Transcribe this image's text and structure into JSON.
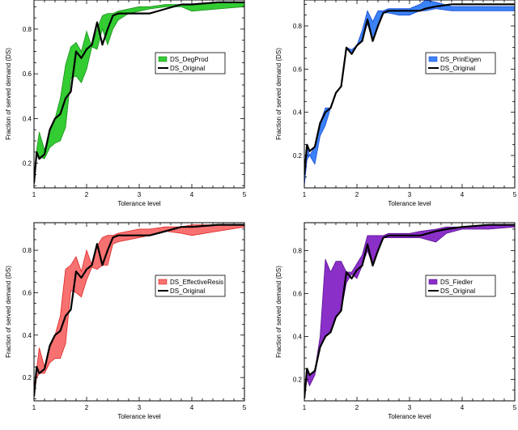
{
  "chart_data": [
    {
      "type": "area",
      "xlabel": "Tolerance level",
      "ylabel": "Fraction of served demand (DS)",
      "xlim": [
        1,
        5
      ],
      "ylim": [
        0.09,
        0.93
      ],
      "xticks": [
        "1",
        "2",
        "3",
        "4",
        "5"
      ],
      "yticks": [
        "0.2",
        "0.4",
        "0.6",
        "0.8"
      ],
      "legend": {
        "placement": "center-right",
        "entries": [
          "DS_DegProd",
          "DS_Original"
        ]
      },
      "band_color": "#33cc33",
      "band_stroke": "#1f8f1f",
      "series": [
        {
          "name": "DS_DegProd",
          "x": [
            1.0,
            1.05,
            1.1,
            1.2,
            1.3,
            1.4,
            1.5,
            1.6,
            1.7,
            1.8,
            1.9,
            2.0,
            2.1,
            2.2,
            2.3,
            2.4,
            2.5,
            2.6,
            2.8,
            3.0,
            3.2,
            3.5,
            3.8,
            4.0,
            4.5,
            5.0
          ],
          "upper": [
            0.11,
            0.26,
            0.34,
            0.26,
            0.34,
            0.4,
            0.49,
            0.64,
            0.72,
            0.74,
            0.7,
            0.79,
            0.72,
            0.8,
            0.86,
            0.87,
            0.87,
            0.88,
            0.89,
            0.9,
            0.9,
            0.91,
            0.91,
            0.91,
            0.92,
            0.92
          ],
          "lower": [
            0.1,
            0.23,
            0.23,
            0.22,
            0.27,
            0.29,
            0.3,
            0.36,
            0.58,
            0.59,
            0.56,
            0.62,
            0.72,
            0.71,
            0.8,
            0.73,
            0.8,
            0.84,
            0.87,
            0.88,
            0.89,
            0.9,
            0.9,
            0.88,
            0.89,
            0.9
          ]
        },
        {
          "name": "DS_Original",
          "x": [
            1.0,
            1.05,
            1.1,
            1.2,
            1.3,
            1.4,
            1.5,
            1.6,
            1.7,
            1.8,
            1.9,
            2.0,
            2.1,
            2.2,
            2.3,
            2.4,
            2.5,
            2.6,
            2.8,
            3.0,
            3.2,
            3.5,
            3.8,
            4.0,
            4.5,
            5.0
          ],
          "values": [
            0.11,
            0.25,
            0.22,
            0.24,
            0.35,
            0.4,
            0.42,
            0.49,
            0.52,
            0.7,
            0.67,
            0.71,
            0.73,
            0.83,
            0.73,
            0.8,
            0.86,
            0.87,
            0.87,
            0.87,
            0.87,
            0.89,
            0.91,
            0.91,
            0.92,
            0.92
          ]
        }
      ]
    },
    {
      "type": "area",
      "xlabel": "Tolerance level",
      "ylabel": "Fraction of served demand (DS)",
      "xlim": [
        1,
        5
      ],
      "ylim": [
        0.05,
        0.92
      ],
      "xticks": [
        "1",
        "2",
        "3",
        "4",
        "5"
      ],
      "yticks": [
        "0.2",
        "0.4",
        "0.6",
        "0.8"
      ],
      "legend": {
        "placement": "center-right",
        "entries": [
          "DS_PrinEigen",
          "DS_Original"
        ]
      },
      "band_color": "#3b82f6",
      "band_stroke": "#1d4ed8",
      "series": [
        {
          "name": "DS_PrinEigen",
          "x": [
            1.0,
            1.05,
            1.1,
            1.2,
            1.3,
            1.4,
            1.5,
            1.6,
            1.7,
            1.8,
            1.9,
            2.0,
            2.1,
            2.2,
            2.3,
            2.4,
            2.5,
            2.6,
            2.8,
            3.0,
            3.2,
            3.3,
            3.5,
            3.8,
            4.0,
            4.5,
            5.0
          ],
          "upper": [
            0.11,
            0.24,
            0.2,
            0.24,
            0.35,
            0.42,
            0.42,
            0.49,
            0.52,
            0.7,
            0.69,
            0.71,
            0.78,
            0.87,
            0.82,
            0.87,
            0.87,
            0.88,
            0.88,
            0.88,
            0.9,
            0.92,
            0.91,
            0.89,
            0.89,
            0.89,
            0.89
          ],
          "lower": [
            0.06,
            0.18,
            0.2,
            0.16,
            0.29,
            0.34,
            0.42,
            0.49,
            0.52,
            0.7,
            0.67,
            0.71,
            0.73,
            0.81,
            0.73,
            0.8,
            0.86,
            0.86,
            0.85,
            0.85,
            0.87,
            0.87,
            0.88,
            0.87,
            0.87,
            0.87,
            0.87
          ]
        },
        {
          "name": "DS_Original",
          "x": [
            1.0,
            1.05,
            1.1,
            1.2,
            1.3,
            1.4,
            1.5,
            1.6,
            1.7,
            1.8,
            1.9,
            2.0,
            2.1,
            2.2,
            2.3,
            2.4,
            2.5,
            2.6,
            2.8,
            3.0,
            3.2,
            3.3,
            3.5,
            3.8,
            4.0,
            4.5,
            5.0
          ],
          "values": [
            0.11,
            0.25,
            0.22,
            0.24,
            0.35,
            0.4,
            0.42,
            0.49,
            0.52,
            0.7,
            0.67,
            0.71,
            0.73,
            0.83,
            0.73,
            0.8,
            0.86,
            0.87,
            0.87,
            0.87,
            0.87,
            0.88,
            0.89,
            0.9,
            0.9,
            0.9,
            0.9
          ]
        }
      ]
    },
    {
      "type": "area",
      "xlabel": "Tolerance level",
      "ylabel": "Fraction of served demand (DS)",
      "xlim": [
        1,
        5
      ],
      "ylim": [
        0.09,
        0.93
      ],
      "xticks": [
        "1",
        "2",
        "3",
        "4",
        "5"
      ],
      "yticks": [
        "0.2",
        "0.4",
        "0.6",
        "0.8"
      ],
      "legend": {
        "placement": "center-right",
        "entries": [
          "DS_EffectiveResis",
          "DS_Original"
        ]
      },
      "band_color": "#f87171",
      "band_stroke": "#dc2626",
      "series": [
        {
          "name": "DS_EffectiveResis",
          "x": [
            1.0,
            1.05,
            1.1,
            1.2,
            1.3,
            1.4,
            1.5,
            1.6,
            1.7,
            1.8,
            1.9,
            2.0,
            2.1,
            2.2,
            2.3,
            2.4,
            2.5,
            2.6,
            2.8,
            3.0,
            3.2,
            3.5,
            3.8,
            4.0,
            4.5,
            5.0
          ],
          "upper": [
            0.14,
            0.24,
            0.34,
            0.25,
            0.34,
            0.4,
            0.49,
            0.71,
            0.73,
            0.77,
            0.7,
            0.8,
            0.73,
            0.82,
            0.86,
            0.87,
            0.87,
            0.88,
            0.89,
            0.9,
            0.9,
            0.91,
            0.91,
            0.92,
            0.92,
            0.92
          ],
          "lower": [
            0.11,
            0.2,
            0.22,
            0.22,
            0.27,
            0.29,
            0.29,
            0.36,
            0.61,
            0.6,
            0.58,
            0.66,
            0.72,
            0.71,
            0.73,
            0.73,
            0.83,
            0.84,
            0.85,
            0.86,
            0.87,
            0.89,
            0.88,
            0.87,
            0.89,
            0.91
          ]
        },
        {
          "name": "DS_Original",
          "x": [
            1.0,
            1.05,
            1.1,
            1.2,
            1.3,
            1.4,
            1.5,
            1.6,
            1.7,
            1.8,
            1.9,
            2.0,
            2.1,
            2.2,
            2.3,
            2.4,
            2.5,
            2.6,
            2.8,
            3.0,
            3.2,
            3.5,
            3.8,
            4.0,
            4.5,
            5.0
          ],
          "values": [
            0.11,
            0.25,
            0.22,
            0.24,
            0.35,
            0.4,
            0.42,
            0.49,
            0.52,
            0.7,
            0.67,
            0.71,
            0.73,
            0.83,
            0.73,
            0.8,
            0.86,
            0.87,
            0.87,
            0.87,
            0.87,
            0.89,
            0.91,
            0.91,
            0.92,
            0.92
          ]
        }
      ]
    },
    {
      "type": "area",
      "xlabel": "Tolerance level",
      "ylabel": "Fraction of served demand (DS)",
      "xlim": [
        1,
        5
      ],
      "ylim": [
        0.1,
        0.93
      ],
      "xticks": [
        "1",
        "2",
        "3",
        "4",
        "5"
      ],
      "yticks": [
        "0.2",
        "0.4",
        "0.6",
        "0.8"
      ],
      "legend": {
        "placement": "center-right",
        "entries": [
          "DS_Fiedler",
          "DS_Original"
        ]
      },
      "band_color": "#8b2fc9",
      "band_stroke": "#5b1690",
      "series": [
        {
          "name": "DS_Fiedler",
          "x": [
            1.0,
            1.05,
            1.1,
            1.2,
            1.3,
            1.4,
            1.5,
            1.6,
            1.7,
            1.8,
            1.9,
            2.0,
            2.1,
            2.2,
            2.3,
            2.4,
            2.5,
            2.6,
            2.8,
            3.0,
            3.2,
            3.5,
            3.7,
            4.0,
            4.5,
            5.0
          ],
          "upper": [
            0.11,
            0.25,
            0.22,
            0.24,
            0.4,
            0.76,
            0.7,
            0.75,
            0.75,
            0.7,
            0.7,
            0.74,
            0.78,
            0.87,
            0.87,
            0.87,
            0.87,
            0.88,
            0.88,
            0.88,
            0.89,
            0.9,
            0.91,
            0.91,
            0.92,
            0.92
          ],
          "lower": [
            0.11,
            0.2,
            0.17,
            0.22,
            0.35,
            0.4,
            0.42,
            0.49,
            0.52,
            0.65,
            0.69,
            0.67,
            0.73,
            0.8,
            0.73,
            0.8,
            0.86,
            0.86,
            0.86,
            0.86,
            0.86,
            0.84,
            0.88,
            0.9,
            0.9,
            0.91
          ]
        },
        {
          "name": "DS_Original",
          "x": [
            1.0,
            1.05,
            1.1,
            1.2,
            1.3,
            1.4,
            1.5,
            1.6,
            1.7,
            1.8,
            1.9,
            2.0,
            2.1,
            2.2,
            2.3,
            2.4,
            2.5,
            2.6,
            2.8,
            3.0,
            3.2,
            3.5,
            3.7,
            4.0,
            4.5,
            5.0
          ],
          "values": [
            0.11,
            0.25,
            0.22,
            0.24,
            0.35,
            0.4,
            0.42,
            0.49,
            0.52,
            0.7,
            0.67,
            0.71,
            0.73,
            0.83,
            0.73,
            0.8,
            0.86,
            0.87,
            0.87,
            0.87,
            0.87,
            0.89,
            0.9,
            0.91,
            0.92,
            0.92
          ]
        }
      ]
    }
  ]
}
